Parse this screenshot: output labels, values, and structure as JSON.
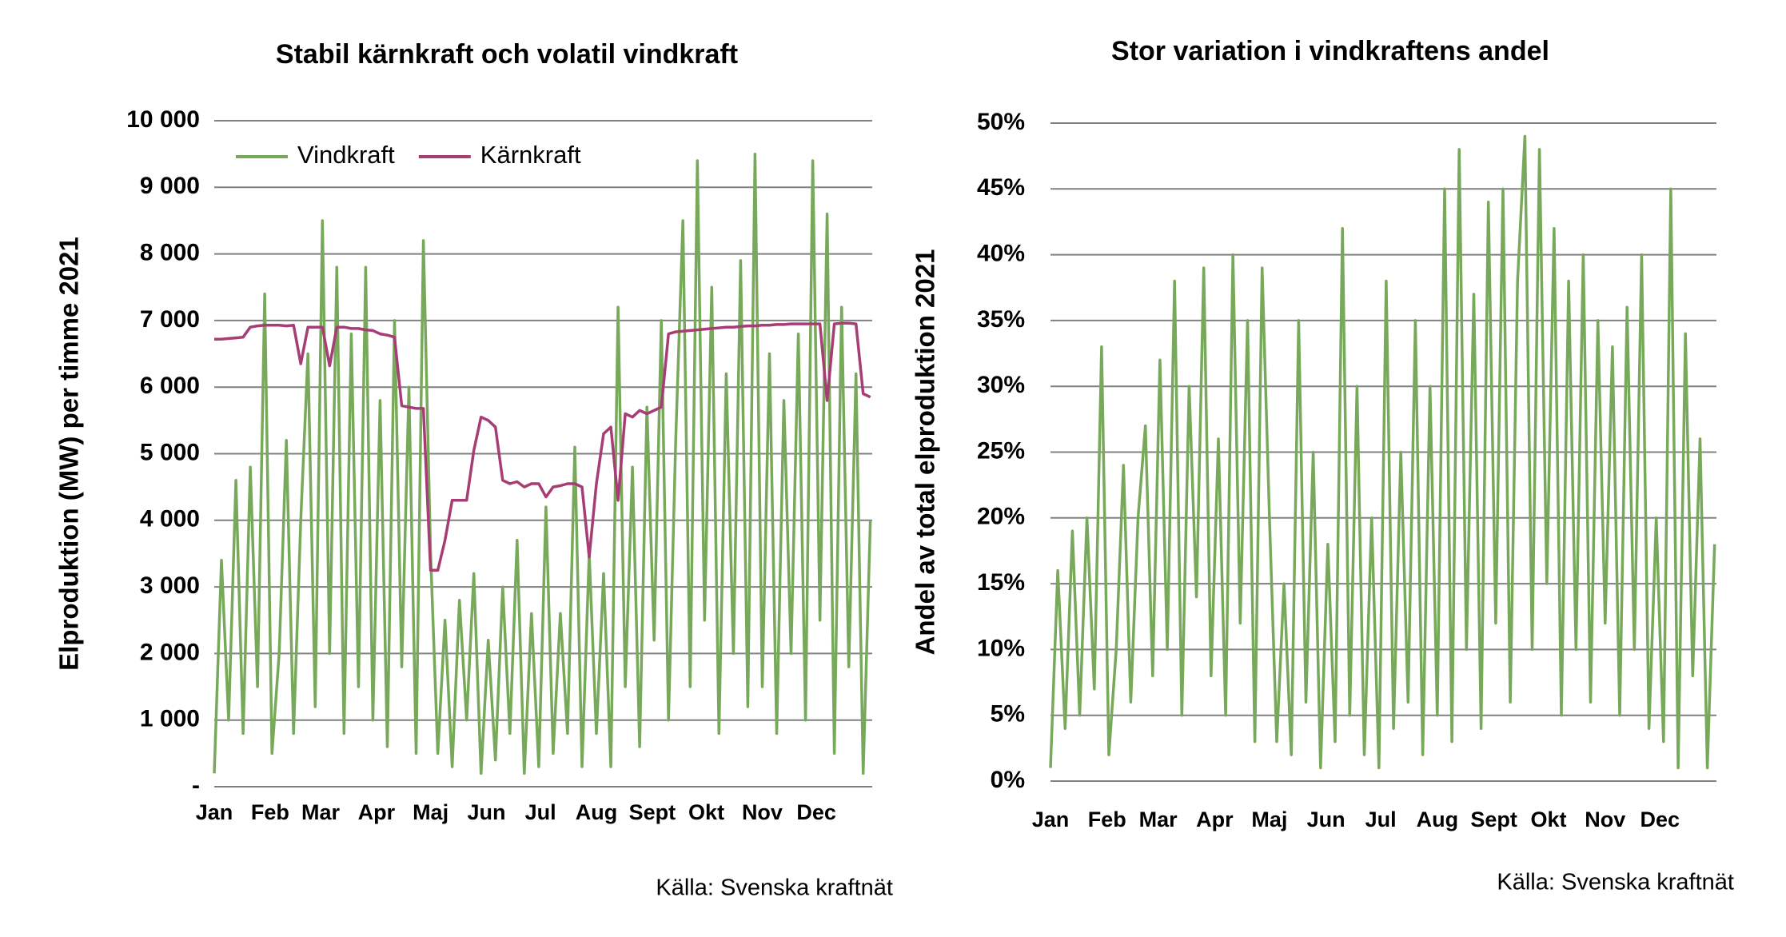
{
  "chart_data": [
    {
      "type": "line",
      "title": "Stabil kärnkraft och volatil vindkraft",
      "y_label": "Elproduktion (MW) per timme 2021",
      "source": "Källa: Svenska kraftnät",
      "legend": "upper left",
      "grid": true,
      "xlim": [
        0,
        365
      ],
      "xticks": [
        {
          "value": 0,
          "label": "Jan"
        },
        {
          "value": 31,
          "label": "Feb"
        },
        {
          "value": 59,
          "label": "Mar"
        },
        {
          "value": 90,
          "label": "Apr"
        },
        {
          "value": 120,
          "label": "Maj"
        },
        {
          "value": 151,
          "label": "Jun"
        },
        {
          "value": 181,
          "label": "Jul"
        },
        {
          "value": 212,
          "label": "Aug"
        },
        {
          "value": 243,
          "label": "Sept"
        },
        {
          "value": 273,
          "label": "Okt"
        },
        {
          "value": 304,
          "label": "Nov"
        },
        {
          "value": 334,
          "label": "Dec"
        }
      ],
      "ylim": [
        0,
        10000
      ],
      "yticks": [
        {
          "value": 0,
          "label": "-"
        },
        {
          "value": 1000,
          "label": "1 000"
        },
        {
          "value": 2000,
          "label": "2 000"
        },
        {
          "value": 3000,
          "label": "3 000"
        },
        {
          "value": 4000,
          "label": "4 000"
        },
        {
          "value": 5000,
          "label": "5 000"
        },
        {
          "value": 6000,
          "label": "6 000"
        },
        {
          "value": 7000,
          "label": "7 000"
        },
        {
          "value": 8000,
          "label": "8 000"
        },
        {
          "value": 9000,
          "label": "9 000"
        },
        {
          "value": 10000,
          "label": "10 000"
        }
      ],
      "x": [
        0,
        4,
        8,
        12,
        16,
        20,
        24,
        28,
        32,
        36,
        40,
        44,
        48,
        52,
        56,
        60,
        64,
        68,
        72,
        76,
        80,
        84,
        88,
        92,
        96,
        100,
        104,
        108,
        112,
        116,
        120,
        124,
        128,
        132,
        136,
        140,
        144,
        148,
        152,
        156,
        160,
        164,
        168,
        172,
        176,
        180,
        184,
        188,
        192,
        196,
        200,
        204,
        208,
        212,
        216,
        220,
        224,
        228,
        232,
        236,
        240,
        244,
        248,
        252,
        256,
        260,
        264,
        268,
        272,
        276,
        280,
        284,
        288,
        292,
        296,
        300,
        304,
        308,
        312,
        316,
        320,
        324,
        328,
        332,
        336,
        340,
        344,
        348,
        352,
        356,
        360,
        364
      ],
      "series": [
        {
          "name": "Vindkraft",
          "color": "#78a95b",
          "values": [
            200,
            3400,
            1000,
            4600,
            800,
            4800,
            1500,
            7400,
            500,
            2000,
            5200,
            800,
            4000,
            6500,
            1200,
            8500,
            2000,
            7800,
            800,
            6800,
            1500,
            7800,
            1000,
            5800,
            600,
            7000,
            1800,
            6000,
            500,
            8200,
            3500,
            500,
            2500,
            300,
            2800,
            1000,
            3200,
            200,
            2200,
            400,
            3000,
            800,
            3700,
            200,
            2600,
            300,
            4200,
            500,
            2600,
            800,
            5100,
            300,
            3500,
            800,
            3200,
            300,
            7200,
            1500,
            4800,
            600,
            5700,
            2200,
            7000,
            1000,
            5200,
            8500,
            1500,
            9400,
            2500,
            7500,
            800,
            6200,
            2000,
            7900,
            1200,
            9500,
            1500,
            6500,
            800,
            5800,
            2000,
            6800,
            1000,
            9400,
            2500,
            8600,
            500,
            7200,
            1800,
            6200,
            200,
            4000
          ]
        },
        {
          "name": "Kärnkraft",
          "color": "#a63d75",
          "values": [
            6720,
            6720,
            6730,
            6740,
            6750,
            6900,
            6920,
            6930,
            6930,
            6930,
            6920,
            6930,
            6350,
            6900,
            6900,
            6900,
            6320,
            6900,
            6900,
            6880,
            6880,
            6860,
            6850,
            6800,
            6780,
            6750,
            5720,
            5700,
            5680,
            5680,
            3250,
            3250,
            3700,
            4300,
            4300,
            4300,
            5050,
            5550,
            5500,
            5400,
            4600,
            4550,
            4580,
            4500,
            4550,
            4550,
            4350,
            4500,
            4520,
            4550,
            4550,
            4500,
            3450,
            4550,
            5300,
            5400,
            4300,
            5600,
            5550,
            5650,
            5600,
            5650,
            5700,
            6800,
            6830,
            6840,
            6850,
            6860,
            6870,
            6880,
            6890,
            6900,
            6900,
            6910,
            6920,
            6920,
            6930,
            6930,
            6940,
            6940,
            6950,
            6950,
            6950,
            6950,
            6950,
            5800,
            6950,
            6960,
            6960,
            6950,
            5900,
            5850
          ]
        }
      ]
    },
    {
      "type": "line",
      "title": "Stor variation i vindkraftens andel",
      "y_label": "Andel av total elproduktion 2021",
      "source": "Källa: Svenska kraftnät",
      "grid": true,
      "xlim": [
        0,
        365
      ],
      "xticks": [
        {
          "value": 0,
          "label": "Jan"
        },
        {
          "value": 31,
          "label": "Feb"
        },
        {
          "value": 59,
          "label": "Mar"
        },
        {
          "value": 90,
          "label": "Apr"
        },
        {
          "value": 120,
          "label": "Maj"
        },
        {
          "value": 151,
          "label": "Jun"
        },
        {
          "value": 181,
          "label": "Jul"
        },
        {
          "value": 212,
          "label": "Aug"
        },
        {
          "value": 243,
          "label": "Sept"
        },
        {
          "value": 273,
          "label": "Okt"
        },
        {
          "value": 304,
          "label": "Nov"
        },
        {
          "value": 334,
          "label": "Dec"
        }
      ],
      "ylim": [
        0,
        50
      ],
      "yticks": [
        {
          "value": 0,
          "label": "0%"
        },
        {
          "value": 5,
          "label": "5%"
        },
        {
          "value": 10,
          "label": "10%"
        },
        {
          "value": 15,
          "label": "15%"
        },
        {
          "value": 20,
          "label": "20%"
        },
        {
          "value": 25,
          "label": "25%"
        },
        {
          "value": 30,
          "label": "30%"
        },
        {
          "value": 35,
          "label": "35%"
        },
        {
          "value": 40,
          "label": "40%"
        },
        {
          "value": 45,
          "label": "45%"
        },
        {
          "value": 50,
          "label": "50%"
        }
      ],
      "x": [
        0,
        4,
        8,
        12,
        16,
        20,
        24,
        28,
        32,
        36,
        40,
        44,
        48,
        52,
        56,
        60,
        64,
        68,
        72,
        76,
        80,
        84,
        88,
        92,
        96,
        100,
        104,
        108,
        112,
        116,
        120,
        124,
        128,
        132,
        136,
        140,
        144,
        148,
        152,
        156,
        160,
        164,
        168,
        172,
        176,
        180,
        184,
        188,
        192,
        196,
        200,
        204,
        208,
        212,
        216,
        220,
        224,
        228,
        232,
        236,
        240,
        244,
        248,
        252,
        256,
        260,
        264,
        268,
        272,
        276,
        280,
        284,
        288,
        292,
        296,
        300,
        304,
        308,
        312,
        316,
        320,
        324,
        328,
        332,
        336,
        340,
        344,
        348,
        352,
        356,
        360,
        364
      ],
      "series": [
        {
          "color": "#78a95b",
          "values": [
            1,
            16,
            4,
            19,
            5,
            20,
            7,
            33,
            2,
            10,
            24,
            6,
            20,
            27,
            8,
            32,
            10,
            38,
            5,
            30,
            14,
            39,
            8,
            26,
            5,
            40,
            12,
            35,
            3,
            39,
            20,
            3,
            15,
            2,
            35,
            6,
            25,
            1,
            18,
            3,
            42,
            5,
            30,
            2,
            20,
            1,
            38,
            4,
            25,
            6,
            35,
            2,
            30,
            5,
            45,
            3,
            48,
            10,
            37,
            4,
            44,
            12,
            45,
            6,
            38,
            49,
            10,
            48,
            15,
            42,
            5,
            38,
            10,
            40,
            6,
            35,
            12,
            33,
            5,
            36,
            10,
            40,
            4,
            20,
            3,
            45,
            1,
            34,
            8,
            26,
            1,
            18
          ]
        }
      ]
    }
  ]
}
